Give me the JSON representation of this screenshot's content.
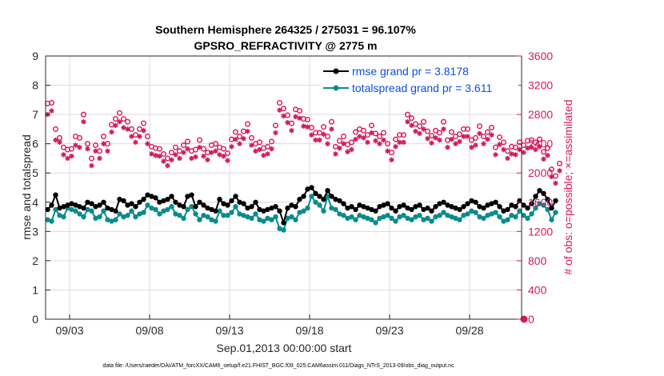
{
  "chart_data": {
    "type": "line",
    "title": "Southern Hemisphere 264325 / 275031 = 96.107%",
    "subtitle": "GPSRO_REFRACTIVITY @ 2775 m",
    "xlabel": "Sep.01,2013 00:00:00 start",
    "ylabel": "rmse and totalspread",
    "y2label": "# of obs: o=possible; ×=assimilated",
    "footnote": "data file: /Users/raeder/DAI/ATM_forcXX/CAM6_setup/f.e21.FHIST_BGC.f09_025.CAM6assim.011/Diags_NTrS_2013-09/obs_diag_output.nc",
    "xlim": [
      1.5,
      31.25
    ],
    "ylim": [
      0,
      9
    ],
    "y2lim": [
      0,
      3600
    ],
    "grid": true,
    "legend_position": "top-right",
    "x_ticks": [
      3,
      8,
      13,
      18,
      23,
      28
    ],
    "x_tick_labels": [
      "09/03",
      "09/08",
      "09/13",
      "09/18",
      "09/23",
      "09/28"
    ],
    "y_ticks": [
      "0",
      "1",
      "2",
      "3",
      "4",
      "5",
      "6",
      "7",
      "8",
      "9"
    ],
    "y2_ticks": [
      "0",
      "400",
      "800",
      "1200",
      "1600",
      "2000",
      "2400",
      "2800",
      "3200",
      "3600"
    ],
    "x_start": 1.625,
    "x_step": 0.25,
    "series": [
      {
        "name": "rmse grand pr = 3.8178",
        "color": "#000000",
        "values": [
          3.75,
          3.9,
          4.25,
          3.8,
          3.85,
          3.9,
          3.95,
          3.9,
          3.85,
          3.8,
          4.0,
          3.95,
          3.85,
          3.9,
          4.0,
          3.8,
          3.75,
          3.7,
          4.1,
          4.05,
          3.9,
          3.95,
          3.85,
          4.0,
          4.1,
          4.25,
          4.2,
          4.15,
          4.0,
          4.05,
          4.1,
          4.2,
          4.0,
          3.9,
          3.85,
          4.2,
          4.25,
          3.85,
          4.0,
          3.9,
          3.8,
          3.75,
          3.7,
          4.1,
          3.95,
          3.9,
          4.05,
          4.2,
          4.0,
          3.95,
          3.8,
          3.85,
          4.0,
          3.75,
          3.7,
          3.75,
          3.8,
          3.85,
          3.7,
          3.3,
          3.8,
          3.9,
          3.85,
          4.1,
          4.2,
          4.45,
          4.5,
          4.3,
          4.2,
          4.1,
          4.4,
          4.2,
          4.1,
          4.05,
          3.95,
          3.8,
          3.85,
          3.75,
          3.9,
          3.85,
          3.8,
          3.75,
          3.7,
          3.85,
          3.9,
          3.95,
          3.8,
          3.7,
          3.85,
          3.9,
          3.8,
          3.75,
          3.85,
          3.9,
          3.75,
          3.8,
          3.7,
          3.85,
          3.95,
          4.0,
          3.9,
          3.85,
          3.8,
          3.75,
          3.85,
          3.95,
          4.05,
          4.0,
          3.85,
          3.8,
          3.9,
          3.95,
          4.0,
          3.85,
          3.7,
          3.75,
          3.9,
          3.85,
          4.05,
          3.9,
          3.8,
          3.95,
          4.2,
          4.4,
          4.3,
          4.1,
          3.8,
          4.05
        ]
      },
      {
        "name": "totalspread grand pr = 3.611",
        "color": "#0b8b8b",
        "values": [
          3.4,
          3.35,
          3.75,
          3.55,
          3.5,
          3.8,
          3.75,
          3.7,
          3.6,
          3.5,
          3.75,
          3.7,
          3.45,
          3.5,
          3.7,
          3.4,
          3.35,
          3.4,
          3.6,
          3.5,
          3.55,
          3.7,
          3.5,
          3.6,
          3.65,
          3.9,
          3.8,
          3.75,
          3.6,
          3.7,
          3.75,
          3.85,
          3.6,
          3.55,
          3.45,
          3.75,
          3.85,
          3.6,
          3.4,
          3.55,
          3.5,
          3.4,
          3.35,
          3.7,
          3.55,
          3.55,
          3.65,
          3.85,
          3.6,
          3.55,
          3.5,
          3.45,
          3.6,
          3.4,
          3.35,
          3.45,
          3.4,
          3.5,
          3.1,
          3.05,
          3.45,
          3.5,
          3.4,
          3.65,
          3.7,
          3.8,
          4.2,
          4.0,
          3.9,
          3.7,
          4.2,
          3.8,
          3.75,
          3.6,
          3.55,
          3.45,
          3.5,
          3.4,
          3.55,
          3.5,
          3.45,
          3.4,
          3.3,
          3.45,
          3.5,
          3.55,
          3.45,
          3.35,
          3.5,
          3.55,
          3.45,
          3.4,
          3.5,
          3.55,
          3.4,
          3.45,
          3.35,
          3.5,
          3.55,
          3.65,
          3.55,
          3.5,
          3.45,
          3.4,
          3.55,
          3.6,
          3.7,
          3.65,
          3.5,
          3.45,
          3.55,
          3.6,
          3.65,
          3.5,
          3.35,
          3.4,
          3.55,
          3.5,
          3.7,
          3.55,
          3.45,
          3.6,
          3.8,
          3.95,
          3.9,
          3.75,
          3.4,
          3.65
        ]
      },
      {
        "name": "possible",
        "color": "#d6195a",
        "marker": "o",
        "axis": "right",
        "values": [
          2950,
          2960,
          2600,
          2480,
          2350,
          2320,
          2330,
          2500,
          2480,
          2800,
          2400,
          2200,
          2380,
          2300,
          2500,
          2400,
          2660,
          2740,
          2820,
          2740,
          2700,
          2600,
          2520,
          2600,
          2680,
          2500,
          2360,
          2340,
          2330,
          2260,
          2200,
          2280,
          2350,
          2300,
          2380,
          2430,
          2300,
          2320,
          2450,
          2330,
          2280,
          2380,
          2400,
          2350,
          2330,
          2270,
          2460,
          2560,
          2500,
          2570,
          2670,
          2480,
          2400,
          2420,
          2340,
          2360,
          2430,
          2650,
          2960,
          2880,
          2790,
          2680,
          2870,
          2850,
          2740,
          2730,
          2620,
          2550,
          2550,
          2630,
          2500,
          2700,
          2360,
          2440,
          2500,
          2390,
          2420,
          2560,
          2600,
          2580,
          2520,
          2650,
          2540,
          2500,
          2550,
          2400,
          2280,
          2460,
          2520,
          2520,
          2800,
          2750,
          2670,
          2640,
          2700,
          2570,
          2510,
          2580,
          2550,
          2700,
          2450,
          2560,
          2500,
          2530,
          2600,
          2600,
          2450,
          2480,
          2640,
          2500,
          2560,
          2620,
          2350,
          2490,
          2420,
          2300,
          2360,
          2350,
          2420,
          2380,
          2440,
          2450,
          2420,
          2460,
          2290,
          2340,
          2050,
          1960,
          2130
        ]
      },
      {
        "name": "assimilated",
        "color": "#d6195a",
        "marker": "x",
        "axis": "right",
        "values": [
          2800,
          2850,
          2450,
          2420,
          2250,
          2200,
          2230,
          2380,
          2350,
          2700,
          2330,
          2100,
          2300,
          2200,
          2400,
          2300,
          2560,
          2650,
          2700,
          2620,
          2600,
          2500,
          2420,
          2500,
          2580,
          2400,
          2260,
          2240,
          2230,
          2160,
          2100,
          2180,
          2250,
          2200,
          2280,
          2330,
          2200,
          2220,
          2350,
          2230,
          2180,
          2280,
          2300,
          2250,
          2230,
          2170,
          2360,
          2460,
          2400,
          2470,
          2570,
          2380,
          2300,
          2320,
          2240,
          2260,
          2330,
          2550,
          2860,
          2780,
          2690,
          2580,
          2770,
          2750,
          2640,
          2630,
          2520,
          2450,
          2450,
          2530,
          2400,
          2600,
          2260,
          2340,
          2400,
          2290,
          2320,
          2460,
          2500,
          2480,
          2420,
          2550,
          2440,
          2400,
          2450,
          2300,
          2180,
          2360,
          2420,
          2420,
          2700,
          2650,
          2570,
          2540,
          2600,
          2470,
          2410,
          2480,
          2450,
          2600,
          2350,
          2460,
          2400,
          2430,
          2500,
          2500,
          2350,
          2380,
          2540,
          2400,
          2460,
          2520,
          2250,
          2390,
          2320,
          2200,
          2260,
          2250,
          2320,
          2280,
          2340,
          2350,
          2320,
          2360,
          2190,
          2240,
          1950,
          1860,
          2030
        ]
      }
    ]
  }
}
